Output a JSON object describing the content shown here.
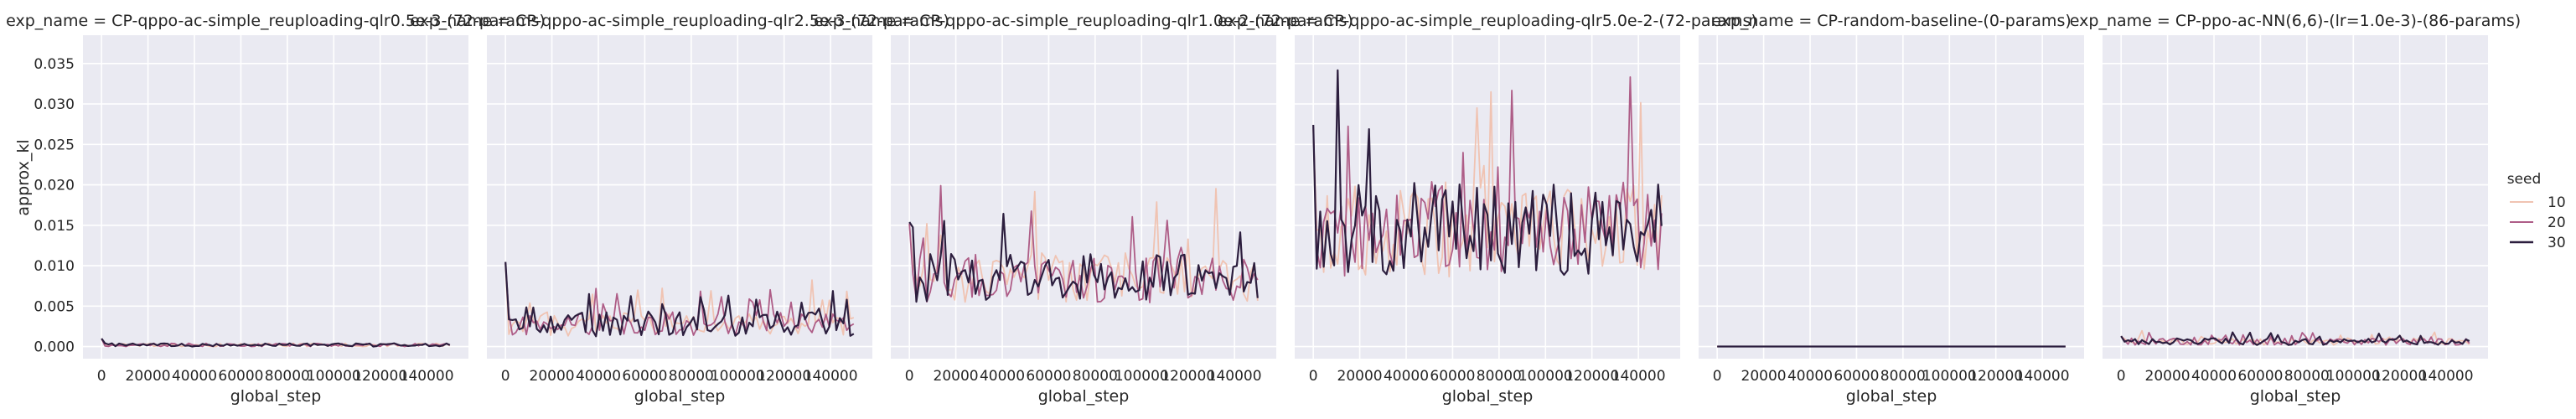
{
  "chart_data": {
    "type": "line",
    "ylabel": "approx_kl",
    "xlabel": "global_step",
    "xlim": [
      -8000,
      158000
    ],
    "ylim": [
      -0.0015,
      0.0385
    ],
    "xticks": [
      0,
      20000,
      40000,
      60000,
      80000,
      100000,
      120000,
      140000
    ],
    "yticks": [
      "0.000",
      "0.005",
      "0.010",
      "0.015",
      "0.020",
      "0.025",
      "0.030",
      "0.035"
    ],
    "ytick_values": [
      0,
      0.005,
      0.01,
      0.015,
      0.02,
      0.025,
      0.03,
      0.035
    ],
    "grid": true,
    "legend": {
      "title": "seed",
      "placement": "right",
      "entries": [
        {
          "label": "10",
          "color": "#f0c3b2"
        },
        {
          "label": "20",
          "color": "#ae5d87"
        },
        {
          "label": "30",
          "color": "#2c1e3e"
        }
      ]
    },
    "x_step": 1500,
    "x_end": 150000,
    "panels": [
      {
        "title": "exp_name = CP-qppo-ac-simple_reuploading-qlr0.5e-3-(72-params)",
        "mean": 0.0002,
        "noise": 0.00015,
        "start": 0.0009,
        "spikes": 0
      },
      {
        "title": "exp_name = CP-qppo-ac-simple_reuploading-qlr2.5e-3-(72-params)",
        "mean": 0.0028,
        "noise": 0.0011,
        "start": 0.0115,
        "spikes": 0.12
      },
      {
        "title": "exp_name = CP-qppo-ac-simple_reuploading-qlr1.0e-2-(72-params)",
        "mean": 0.0085,
        "noise": 0.0022,
        "start": 0.015,
        "spikes": 0.06
      },
      {
        "title": "exp_name = CP-qppo-ac-simple_reuploading-qlr5.0e-2-(72-params)",
        "mean": 0.0145,
        "noise": 0.0042,
        "start": 0.024,
        "spikes": 0.08
      },
      {
        "title": "exp_name = CP-random-baseline-(0-params)",
        "mean": 0.0,
        "noise": 0.0,
        "start": 0.0,
        "spikes": 0
      },
      {
        "title": "exp_name = CP-ppo-ac-NN(6,6)-(lr=1.0e-3)-(86-params)",
        "mean": 0.0006,
        "noise": 0.0003,
        "start": 0.0012,
        "spikes": 0.1
      }
    ]
  }
}
